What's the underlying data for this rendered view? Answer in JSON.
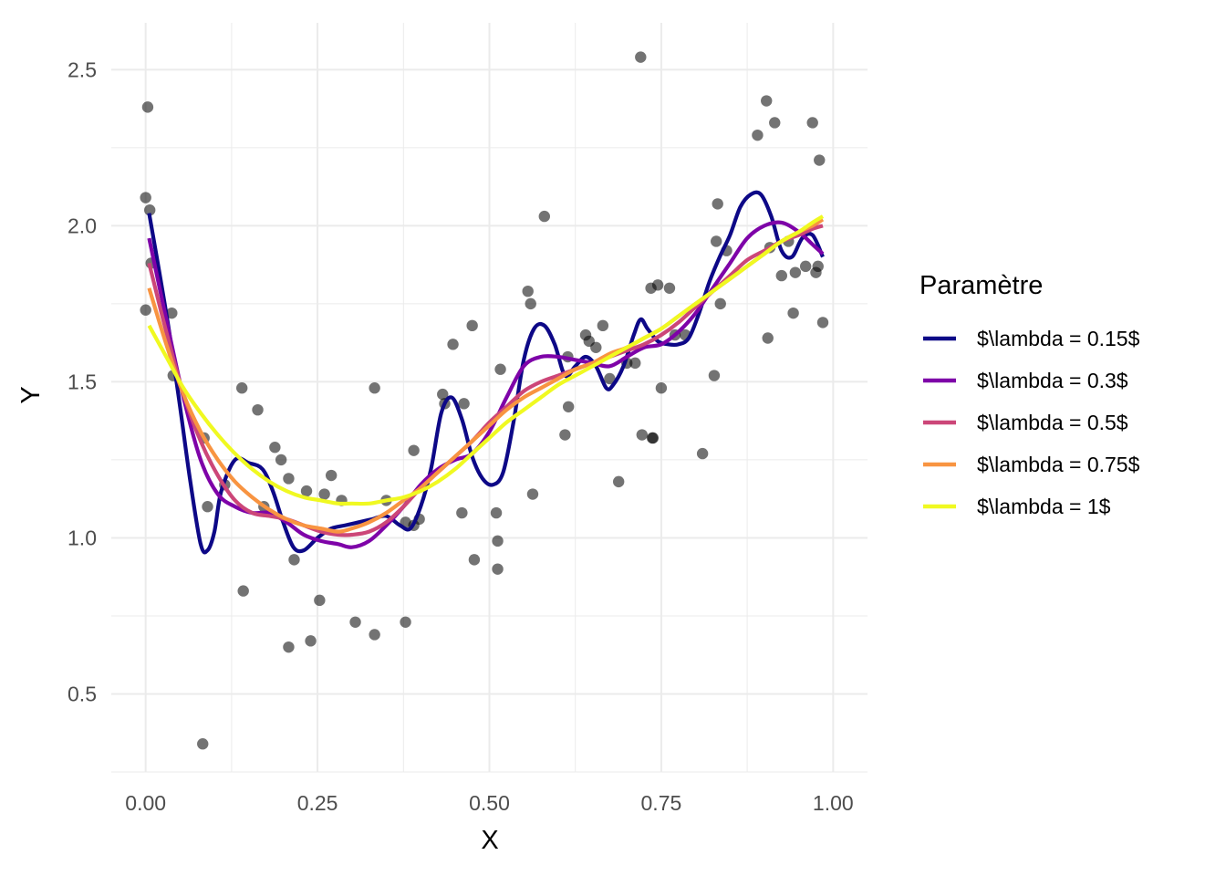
{
  "chart_data": {
    "type": "scatter",
    "xlabel": "X",
    "ylabel": "Y",
    "xlim": [
      -0.05,
      1.05
    ],
    "ylim": [
      0.25,
      2.65
    ],
    "x_ticks": [
      0.0,
      0.25,
      0.5,
      0.75,
      1.0
    ],
    "x_tick_labels": [
      "0.00",
      "0.25",
      "0.50",
      "0.75",
      "1.00"
    ],
    "y_ticks": [
      0.5,
      1.0,
      1.5,
      2.0,
      2.5
    ],
    "y_tick_labels": [
      "0.5",
      "1.0",
      "1.5",
      "2.0",
      "2.5"
    ],
    "grid": true,
    "legend": {
      "title": "Paramètre",
      "position": "right"
    },
    "points": [
      [
        0.0,
        1.73
      ],
      [
        0.0,
        2.09
      ],
      [
        0.003,
        2.38
      ],
      [
        0.006,
        2.05
      ],
      [
        0.008,
        1.88
      ],
      [
        0.038,
        1.72
      ],
      [
        0.04,
        1.52
      ],
      [
        0.085,
        1.32
      ],
      [
        0.09,
        1.1
      ],
      [
        0.083,
        0.34
      ],
      [
        0.115,
        1.17
      ],
      [
        0.14,
        1.48
      ],
      [
        0.142,
        0.83
      ],
      [
        0.163,
        1.41
      ],
      [
        0.172,
        1.1
      ],
      [
        0.188,
        1.29
      ],
      [
        0.197,
        1.25
      ],
      [
        0.208,
        1.19
      ],
      [
        0.208,
        0.65
      ],
      [
        0.216,
        0.93
      ],
      [
        0.234,
        1.15
      ],
      [
        0.24,
        0.67
      ],
      [
        0.253,
        0.8
      ],
      [
        0.26,
        1.14
      ],
      [
        0.27,
        1.2
      ],
      [
        0.285,
        1.12
      ],
      [
        0.305,
        0.73
      ],
      [
        0.333,
        0.69
      ],
      [
        0.333,
        1.48
      ],
      [
        0.35,
        1.12
      ],
      [
        0.378,
        1.05
      ],
      [
        0.378,
        0.73
      ],
      [
        0.39,
        1.04
      ],
      [
        0.39,
        1.28
      ],
      [
        0.398,
        1.06
      ],
      [
        0.432,
        1.46
      ],
      [
        0.435,
        1.43
      ],
      [
        0.447,
        1.62
      ],
      [
        0.46,
        1.08
      ],
      [
        0.463,
        1.43
      ],
      [
        0.475,
        1.68
      ],
      [
        0.478,
        0.93
      ],
      [
        0.51,
        1.08
      ],
      [
        0.512,
        0.99
      ],
      [
        0.512,
        0.9
      ],
      [
        0.516,
        1.54
      ],
      [
        0.556,
        1.79
      ],
      [
        0.56,
        1.75
      ],
      [
        0.563,
        1.14
      ],
      [
        0.58,
        2.03
      ],
      [
        0.61,
        1.33
      ],
      [
        0.614,
        1.58
      ],
      [
        0.615,
        1.42
      ],
      [
        0.64,
        1.65
      ],
      [
        0.645,
        1.63
      ],
      [
        0.655,
        1.61
      ],
      [
        0.665,
        1.68
      ],
      [
        0.675,
        1.51
      ],
      [
        0.688,
        1.18
      ],
      [
        0.7,
        1.56
      ],
      [
        0.712,
        1.56
      ],
      [
        0.72,
        2.54
      ],
      [
        0.722,
        1.33
      ],
      [
        0.735,
        1.8
      ],
      [
        0.737,
        1.32
      ],
      [
        0.738,
        1.32
      ],
      [
        0.745,
        1.81
      ],
      [
        0.75,
        1.48
      ],
      [
        0.762,
        1.8
      ],
      [
        0.77,
        1.65
      ],
      [
        0.785,
        1.65
      ],
      [
        0.81,
        1.27
      ],
      [
        0.827,
        1.52
      ],
      [
        0.83,
        1.95
      ],
      [
        0.832,
        2.07
      ],
      [
        0.836,
        1.75
      ],
      [
        0.845,
        1.92
      ],
      [
        0.89,
        2.29
      ],
      [
        0.903,
        2.4
      ],
      [
        0.905,
        1.64
      ],
      [
        0.908,
        1.93
      ],
      [
        0.915,
        2.33
      ],
      [
        0.925,
        1.84
      ],
      [
        0.935,
        1.95
      ],
      [
        0.942,
        1.72
      ],
      [
        0.945,
        1.85
      ],
      [
        0.96,
        1.87
      ],
      [
        0.97,
        2.33
      ],
      [
        0.975,
        1.85
      ],
      [
        0.978,
        1.87
      ],
      [
        0.98,
        2.21
      ],
      [
        0.985,
        1.69
      ]
    ],
    "series": [
      {
        "name": "$\\lambda = 0.15$",
        "color": "#0d0887",
        "x": [
          0.005,
          0.02,
          0.035,
          0.05,
          0.065,
          0.08,
          0.09,
          0.1,
          0.11,
          0.13,
          0.15,
          0.17,
          0.185,
          0.2,
          0.215,
          0.23,
          0.25,
          0.27,
          0.29,
          0.31,
          0.33,
          0.35,
          0.37,
          0.385,
          0.4,
          0.415,
          0.43,
          0.445,
          0.46,
          0.475,
          0.49,
          0.505,
          0.52,
          0.535,
          0.55,
          0.565,
          0.58,
          0.595,
          0.61,
          0.625,
          0.64,
          0.655,
          0.67,
          0.68,
          0.695,
          0.71,
          0.72,
          0.73,
          0.745,
          0.76,
          0.775,
          0.79,
          0.805,
          0.82,
          0.835,
          0.85,
          0.865,
          0.88,
          0.895,
          0.91,
          0.925,
          0.94,
          0.955,
          0.97,
          0.985
        ],
        "y": [
          2.04,
          1.85,
          1.65,
          1.42,
          1.18,
          0.98,
          0.96,
          1.02,
          1.15,
          1.25,
          1.24,
          1.22,
          1.15,
          1.05,
          0.97,
          0.96,
          1.0,
          1.03,
          1.04,
          1.05,
          1.06,
          1.07,
          1.04,
          1.03,
          1.1,
          1.22,
          1.4,
          1.45,
          1.38,
          1.26,
          1.19,
          1.17,
          1.21,
          1.37,
          1.57,
          1.67,
          1.68,
          1.62,
          1.52,
          1.55,
          1.58,
          1.55,
          1.48,
          1.49,
          1.55,
          1.65,
          1.7,
          1.67,
          1.63,
          1.62,
          1.62,
          1.64,
          1.72,
          1.82,
          1.9,
          1.97,
          2.06,
          2.1,
          2.1,
          2.03,
          1.92,
          1.9,
          1.96,
          1.97,
          1.9
        ]
      },
      {
        "name": "$\\lambda = 0.3$",
        "color": "#7e03a8",
        "x": [
          0.005,
          0.03,
          0.055,
          0.08,
          0.105,
          0.13,
          0.155,
          0.18,
          0.205,
          0.23,
          0.255,
          0.28,
          0.3,
          0.325,
          0.35,
          0.375,
          0.4,
          0.425,
          0.45,
          0.475,
          0.5,
          0.525,
          0.55,
          0.575,
          0.6,
          0.625,
          0.65,
          0.675,
          0.7,
          0.725,
          0.75,
          0.775,
          0.8,
          0.825,
          0.85,
          0.875,
          0.9,
          0.925,
          0.95,
          0.97,
          0.985
        ],
        "y": [
          1.96,
          1.7,
          1.45,
          1.25,
          1.14,
          1.1,
          1.08,
          1.08,
          1.05,
          1.01,
          0.99,
          0.98,
          0.97,
          0.99,
          1.04,
          1.1,
          1.17,
          1.22,
          1.25,
          1.27,
          1.34,
          1.45,
          1.55,
          1.58,
          1.58,
          1.57,
          1.56,
          1.55,
          1.58,
          1.61,
          1.62,
          1.66,
          1.72,
          1.8,
          1.88,
          1.96,
          2.0,
          2.01,
          1.98,
          1.94,
          1.91
        ]
      },
      {
        "name": "$\\lambda = 0.5$",
        "color": "#cc4678",
        "x": [
          0.005,
          0.03,
          0.055,
          0.08,
          0.105,
          0.13,
          0.155,
          0.18,
          0.205,
          0.23,
          0.255,
          0.28,
          0.3,
          0.325,
          0.35,
          0.375,
          0.4,
          0.425,
          0.45,
          0.475,
          0.5,
          0.525,
          0.55,
          0.575,
          0.6,
          0.625,
          0.65,
          0.675,
          0.7,
          0.725,
          0.75,
          0.775,
          0.8,
          0.825,
          0.85,
          0.875,
          0.9,
          0.925,
          0.95,
          0.97,
          0.985
        ],
        "y": [
          1.88,
          1.66,
          1.46,
          1.31,
          1.2,
          1.12,
          1.08,
          1.07,
          1.06,
          1.04,
          1.02,
          1.01,
          1.01,
          1.02,
          1.05,
          1.1,
          1.16,
          1.21,
          1.26,
          1.31,
          1.37,
          1.42,
          1.47,
          1.5,
          1.52,
          1.54,
          1.56,
          1.58,
          1.6,
          1.62,
          1.65,
          1.69,
          1.74,
          1.79,
          1.84,
          1.89,
          1.92,
          1.95,
          1.97,
          1.99,
          2.0
        ]
      },
      {
        "name": "$\\lambda = 0.75$",
        "color": "#f89441",
        "x": [
          0.005,
          0.03,
          0.055,
          0.08,
          0.105,
          0.13,
          0.155,
          0.18,
          0.205,
          0.23,
          0.255,
          0.28,
          0.3,
          0.325,
          0.35,
          0.375,
          0.4,
          0.425,
          0.45,
          0.475,
          0.5,
          0.525,
          0.55,
          0.575,
          0.6,
          0.625,
          0.65,
          0.675,
          0.7,
          0.725,
          0.75,
          0.775,
          0.8,
          0.825,
          0.85,
          0.875,
          0.9,
          0.925,
          0.95,
          0.97,
          0.985
        ],
        "y": [
          1.8,
          1.62,
          1.46,
          1.34,
          1.25,
          1.18,
          1.13,
          1.09,
          1.06,
          1.04,
          1.03,
          1.02,
          1.03,
          1.05,
          1.08,
          1.12,
          1.16,
          1.21,
          1.26,
          1.31,
          1.36,
          1.41,
          1.45,
          1.48,
          1.51,
          1.54,
          1.56,
          1.59,
          1.61,
          1.64,
          1.67,
          1.71,
          1.75,
          1.79,
          1.83,
          1.87,
          1.91,
          1.95,
          1.98,
          2.0,
          2.02
        ]
      },
      {
        "name": "$\\lambda = 1$",
        "color": "#f0f921",
        "x": [
          0.005,
          0.03,
          0.055,
          0.08,
          0.105,
          0.13,
          0.155,
          0.18,
          0.205,
          0.23,
          0.255,
          0.28,
          0.3,
          0.325,
          0.35,
          0.375,
          0.4,
          0.425,
          0.45,
          0.475,
          0.5,
          0.525,
          0.55,
          0.575,
          0.6,
          0.625,
          0.65,
          0.675,
          0.7,
          0.725,
          0.75,
          0.775,
          0.8,
          0.825,
          0.85,
          0.875,
          0.9,
          0.925,
          0.95,
          0.97,
          0.985
        ],
        "y": [
          1.68,
          1.58,
          1.48,
          1.4,
          1.33,
          1.27,
          1.22,
          1.18,
          1.15,
          1.13,
          1.12,
          1.11,
          1.11,
          1.11,
          1.12,
          1.13,
          1.15,
          1.18,
          1.22,
          1.27,
          1.32,
          1.37,
          1.41,
          1.45,
          1.49,
          1.52,
          1.55,
          1.58,
          1.61,
          1.64,
          1.67,
          1.71,
          1.75,
          1.79,
          1.83,
          1.87,
          1.91,
          1.95,
          1.98,
          2.01,
          2.03
        ]
      }
    ]
  }
}
